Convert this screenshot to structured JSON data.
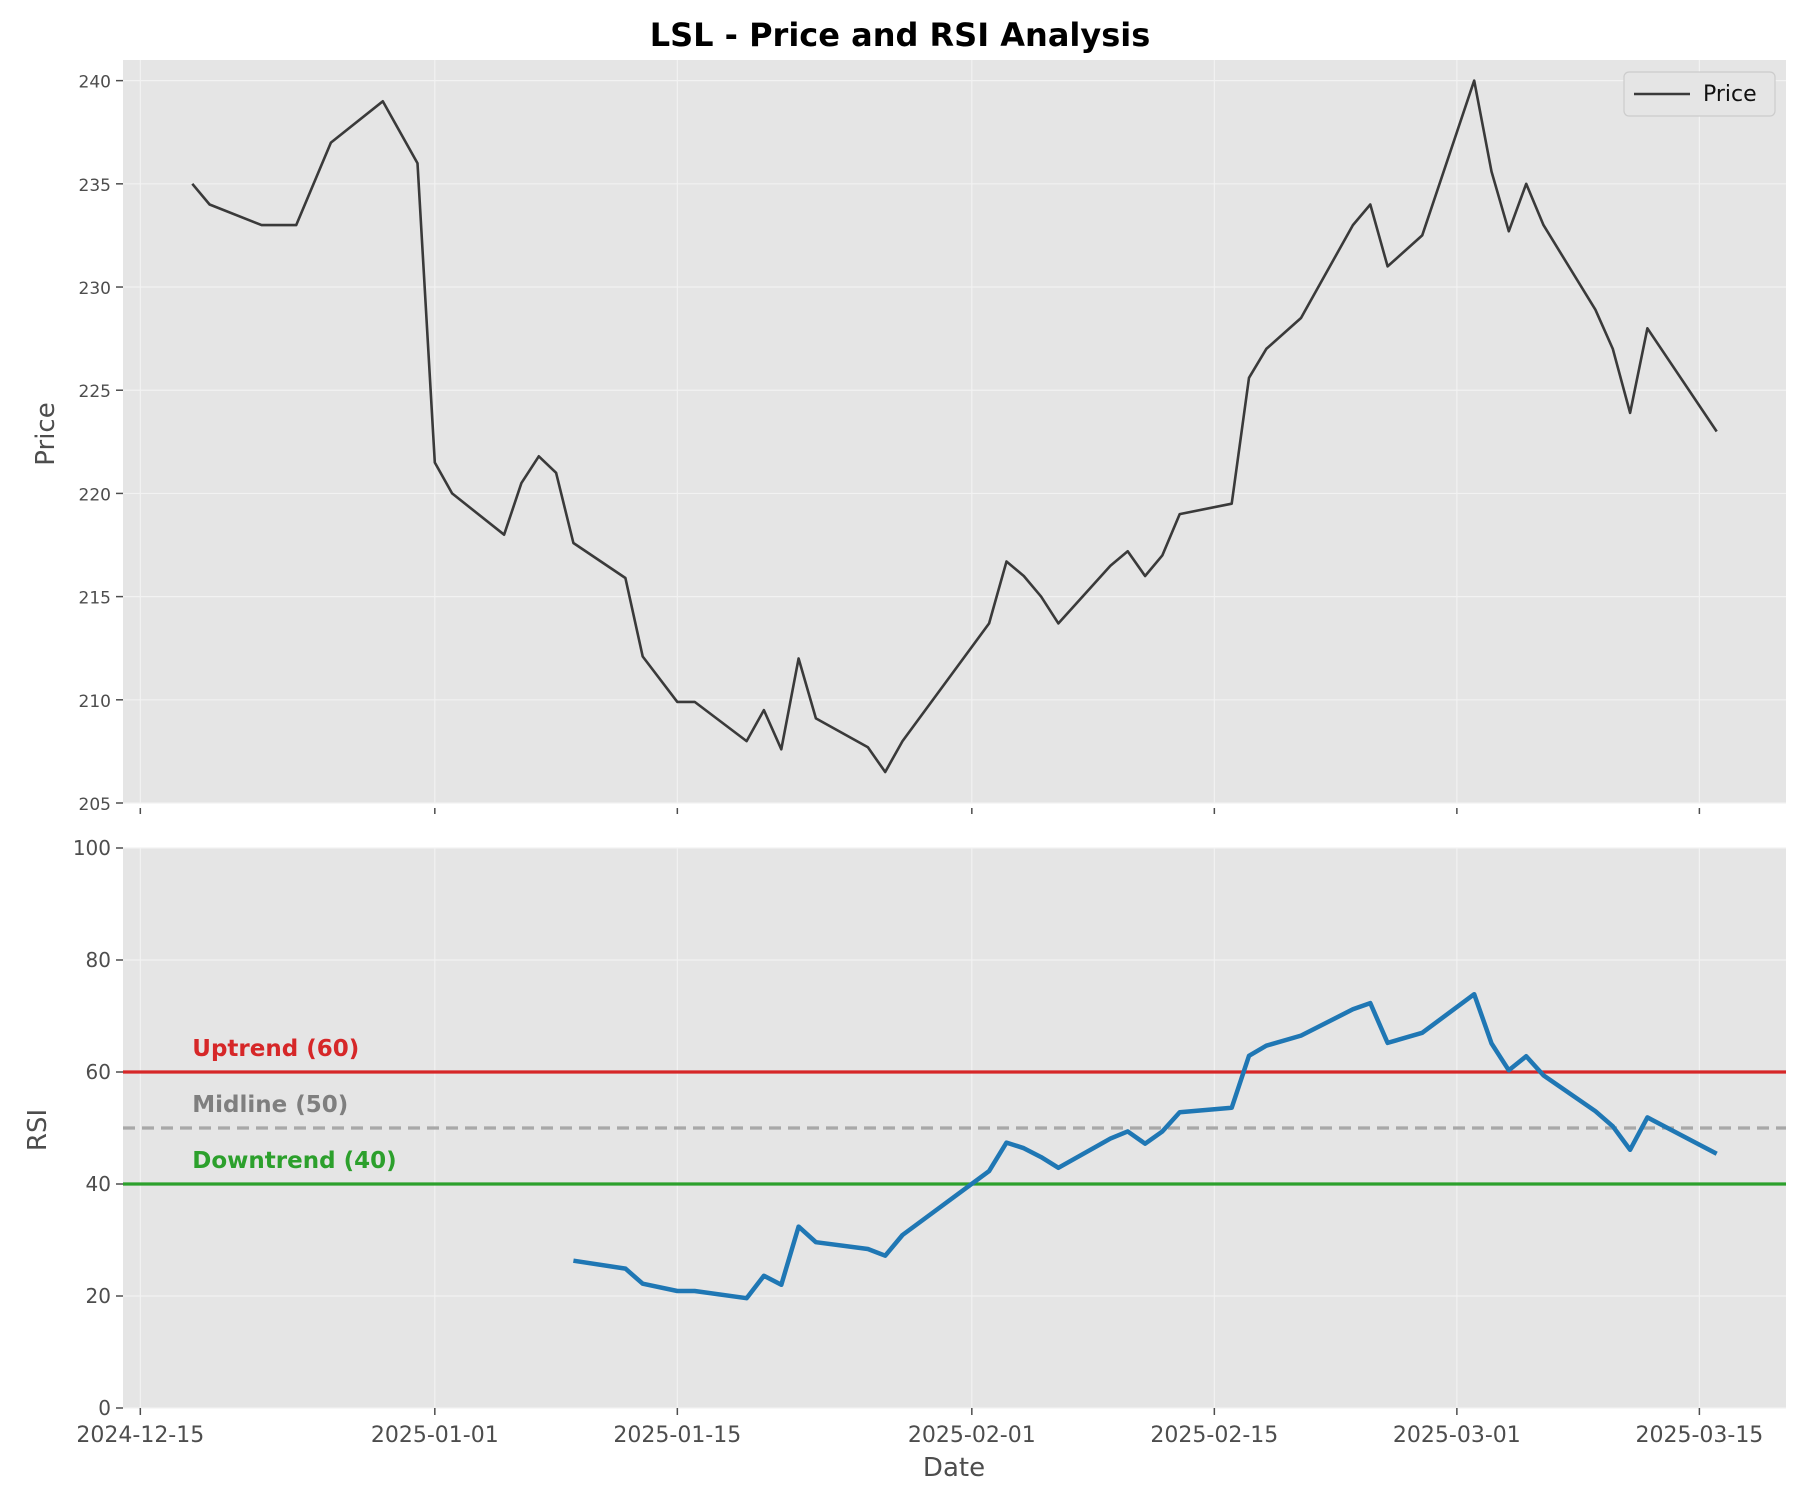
{
  "chart_data": [
    {
      "type": "line",
      "title": "LSL - Price and RSI Analysis",
      "ylabel": "Price",
      "ylim": [
        205,
        241
      ],
      "yticks": [
        205,
        210,
        215,
        220,
        225,
        230,
        235,
        240
      ],
      "grid": true,
      "legend": {
        "entries": [
          "Price"
        ],
        "position": "top-right"
      },
      "series": [
        {
          "name": "Price",
          "color": "#3a3a3a",
          "points": [
            [
              "2024-12-18",
              235.0
            ],
            [
              "2024-12-19",
              234.0
            ],
            [
              "2024-12-22",
              233.0
            ],
            [
              "2024-12-24",
              233.0
            ],
            [
              "2024-12-26",
              237.0
            ],
            [
              "2024-12-29",
              239.0
            ],
            [
              "2024-12-31",
              236.0
            ],
            [
              "2025-01-01",
              221.5
            ],
            [
              "2025-01-02",
              220.0
            ],
            [
              "2025-01-05",
              218.0
            ],
            [
              "2025-01-06",
              220.5
            ],
            [
              "2025-01-07",
              221.8
            ],
            [
              "2025-01-08",
              221.0
            ],
            [
              "2025-01-09",
              217.6
            ],
            [
              "2025-01-12",
              215.9
            ],
            [
              "2025-01-13",
              212.1
            ],
            [
              "2025-01-15",
              209.9
            ],
            [
              "2025-01-16",
              209.9
            ],
            [
              "2025-01-19",
              208.0
            ],
            [
              "2025-01-20",
              209.5
            ],
            [
              "2025-01-21",
              207.6
            ],
            [
              "2025-01-22",
              212.0
            ],
            [
              "2025-01-23",
              209.1
            ],
            [
              "2025-01-26",
              207.7
            ],
            [
              "2025-01-27",
              206.5
            ],
            [
              "2025-01-28",
              208.0
            ],
            [
              "2025-02-02",
              213.7
            ],
            [
              "2025-02-03",
              216.7
            ],
            [
              "2025-02-04",
              216.0
            ],
            [
              "2025-02-05",
              215.0
            ],
            [
              "2025-02-06",
              213.7
            ],
            [
              "2025-02-09",
              216.5
            ],
            [
              "2025-02-10",
              217.2
            ],
            [
              "2025-02-11",
              216.0
            ],
            [
              "2025-02-12",
              217.0
            ],
            [
              "2025-02-13",
              219.0
            ],
            [
              "2025-02-16",
              219.5
            ],
            [
              "2025-02-17",
              225.6
            ],
            [
              "2025-02-18",
              227.0
            ],
            [
              "2025-02-20",
              228.5
            ],
            [
              "2025-02-23",
              233.0
            ],
            [
              "2025-02-24",
              234.0
            ],
            [
              "2025-02-25",
              231.0
            ],
            [
              "2025-02-27",
              232.5
            ],
            [
              "2025-03-02",
              240.0
            ],
            [
              "2025-03-03",
              235.6
            ],
            [
              "2025-03-04",
              232.7
            ],
            [
              "2025-03-05",
              235.0
            ],
            [
              "2025-03-06",
              233.0
            ],
            [
              "2025-03-09",
              228.9
            ],
            [
              "2025-03-10",
              227.0
            ],
            [
              "2025-03-11",
              223.9
            ],
            [
              "2025-03-12",
              228.0
            ],
            [
              "2025-03-16",
              223.0
            ]
          ]
        }
      ]
    },
    {
      "type": "line",
      "ylabel": "RSI",
      "xlabel": "Date",
      "ylim": [
        0,
        100
      ],
      "yticks": [
        0,
        20,
        40,
        60,
        80,
        100
      ],
      "xticks": [
        "2024-12-15",
        "2025-01-01",
        "2025-01-15",
        "2025-02-01",
        "2025-02-15",
        "2025-03-01",
        "2025-03-15"
      ],
      "xlim": [
        "2024-12-14",
        "2025-03-20"
      ],
      "grid": true,
      "series": [
        {
          "name": "RSI",
          "color": "#1f77b4",
          "points": [
            [
              "2025-01-09",
              26.3
            ],
            [
              "2025-01-12",
              24.9
            ],
            [
              "2025-01-13",
              22.2
            ],
            [
              "2025-01-15",
              20.9
            ],
            [
              "2025-01-16",
              20.9
            ],
            [
              "2025-01-19",
              19.6
            ],
            [
              "2025-01-20",
              23.6
            ],
            [
              "2025-01-21",
              22.0
            ],
            [
              "2025-01-22",
              32.4
            ],
            [
              "2025-01-23",
              29.6
            ],
            [
              "2025-01-26",
              28.4
            ],
            [
              "2025-01-27",
              27.2
            ],
            [
              "2025-01-28",
              30.9
            ],
            [
              "2025-02-02",
              42.3
            ],
            [
              "2025-02-03",
              47.4
            ],
            [
              "2025-02-04",
              46.4
            ],
            [
              "2025-02-05",
              44.8
            ],
            [
              "2025-02-06",
              42.9
            ],
            [
              "2025-02-09",
              48.1
            ],
            [
              "2025-02-10",
              49.4
            ],
            [
              "2025-02-11",
              47.2
            ],
            [
              "2025-02-12",
              49.4
            ],
            [
              "2025-02-13",
              52.8
            ],
            [
              "2025-02-16",
              53.6
            ],
            [
              "2025-02-17",
              62.9
            ],
            [
              "2025-02-18",
              64.7
            ],
            [
              "2025-02-20",
              66.5
            ],
            [
              "2025-02-23",
              71.2
            ],
            [
              "2025-02-24",
              72.3
            ],
            [
              "2025-02-25",
              65.2
            ],
            [
              "2025-02-27",
              67.0
            ],
            [
              "2025-03-02",
              73.9
            ],
            [
              "2025-03-03",
              65.1
            ],
            [
              "2025-03-04",
              60.3
            ],
            [
              "2025-03-05",
              62.8
            ],
            [
              "2025-03-06",
              59.4
            ],
            [
              "2025-03-09",
              53.0
            ],
            [
              "2025-03-10",
              50.3
            ],
            [
              "2025-03-11",
              46.1
            ],
            [
              "2025-03-12",
              51.9
            ],
            [
              "2025-03-16",
              45.4
            ]
          ]
        }
      ],
      "reference_lines": [
        {
          "value": 60,
          "label": "Uptrend (60)",
          "color": "#d62728",
          "style": "solid"
        },
        {
          "value": 50,
          "label": "Midline (50)",
          "color": "#7f7f7f",
          "style": "dashed"
        },
        {
          "value": 40,
          "label": "Downtrend (40)",
          "color": "#2ca02c",
          "style": "solid"
        }
      ]
    }
  ]
}
